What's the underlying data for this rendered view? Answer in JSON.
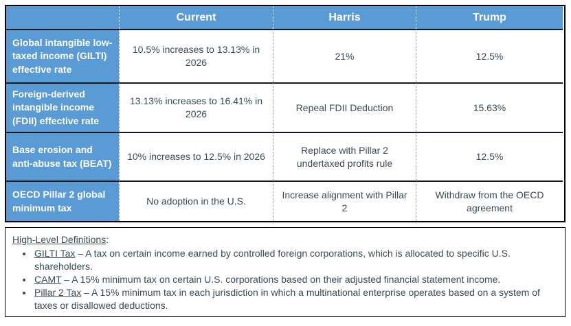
{
  "colors": {
    "accent_blue": "#5B9BD5",
    "body_text": "#3b4a57",
    "outer_border": "#000000",
    "row_divider": "#0f1720",
    "column_divider": "#9e9e9e"
  },
  "table": {
    "columns": [
      "",
      "Current",
      "Harris",
      "Trump"
    ],
    "rows": [
      {
        "label": "Global intangible low-taxed income (GILTI) effective rate",
        "current": "10.5% increases to 13.13% in 2026",
        "harris": "21%",
        "trump": "12.5%"
      },
      {
        "label": "Foreign-derived intangible income (FDII) effective rate",
        "current": "13.13% increases to 16.41% in 2026",
        "harris": "Repeal FDII Deduction",
        "trump": "15.63%"
      },
      {
        "label": "Base erosion and anti-abuse tax (BEAT)",
        "current": "10% increases to 12.5% in 2026",
        "harris": "Replace with Pillar 2 undertaxed profits rule",
        "trump": "12.5%"
      },
      {
        "label": "OECD Pillar 2 global minimum tax",
        "current": "No adoption in the U.S.",
        "harris": "Increase alignment with Pillar 2",
        "trump": "Withdraw from the OECD agreement"
      }
    ]
  },
  "definitions": {
    "title": "High-Level Definitions",
    "title_suffix": ":",
    "items": [
      {
        "term": "GILTI Tax",
        "text": " – A tax on certain income earned by controlled foreign corporations, which is allocated to specific U.S. shareholders."
      },
      {
        "term": "CAMT",
        "text": " – A 15% minimum tax on certain U.S. corporations based on their adjusted financial statement income."
      },
      {
        "term": "Pillar 2 Tax",
        "text": " – A 15% minimum tax in each jurisdiction in which a multinational enterprise operates based on a system of taxes or disallowed deductions."
      }
    ]
  }
}
